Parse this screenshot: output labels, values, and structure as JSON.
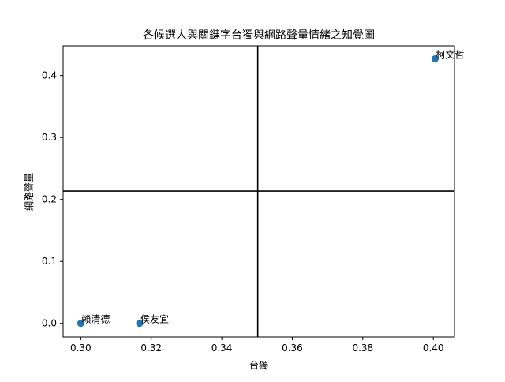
{
  "chart_data": {
    "type": "scatter",
    "title": "各候選人與關鍵字台獨與網路聲量情緒之知覺圖",
    "xlabel": "台獨",
    "ylabel": "網路聲量",
    "xlim": [
      0.295,
      0.406
    ],
    "ylim": [
      -0.022,
      0.448
    ],
    "xticks": [
      "0.30",
      "0.32",
      "0.34",
      "0.36",
      "0.38",
      "0.40"
    ],
    "yticks": [
      "0.0",
      "0.1",
      "0.2",
      "0.3",
      "0.4"
    ],
    "grid": false,
    "reference_lines": {
      "x": 0.3502,
      "y": 0.2135
    },
    "marker_color": "#1f77b4",
    "points": [
      {
        "label": "賴清德",
        "x": 0.3,
        "y": 0.0
      },
      {
        "label": "侯友宜",
        "x": 0.3167,
        "y": 0.0
      },
      {
        "label": "柯文哲",
        "x": 0.4005,
        "y": 0.427
      }
    ]
  }
}
